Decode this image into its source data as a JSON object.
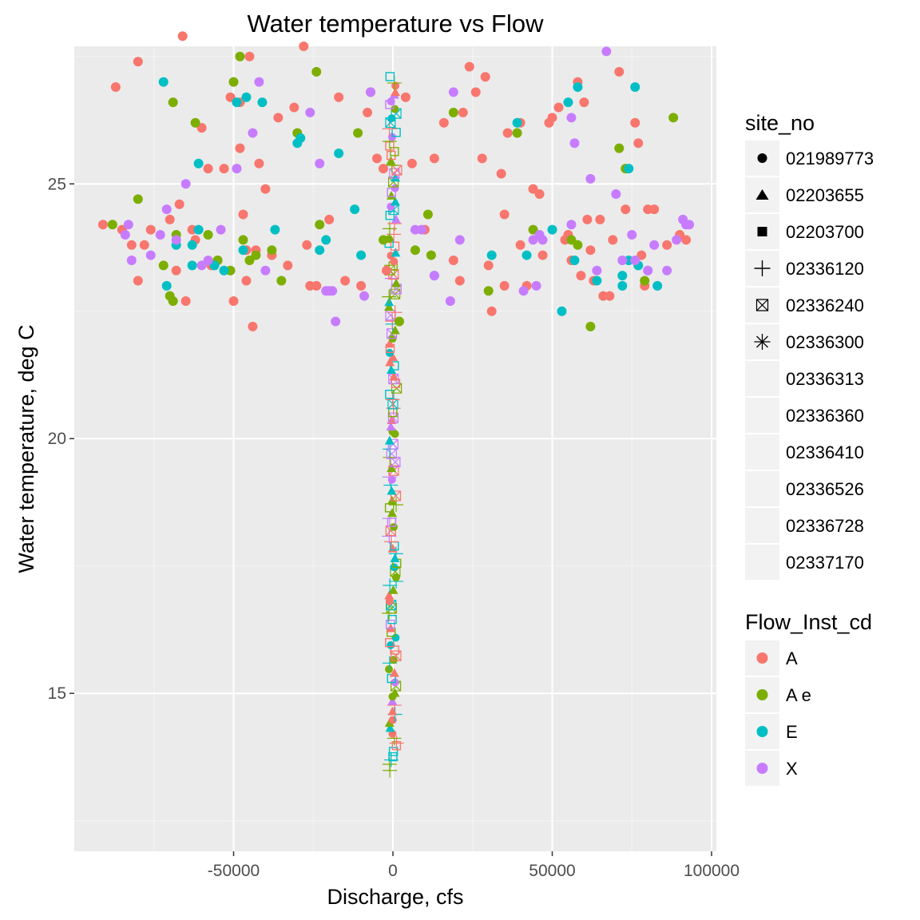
{
  "chart_data": {
    "type": "scatter",
    "title": "Water temperature vs Flow",
    "xlabel": "Discharge, cfs",
    "ylabel": "Water temperature, deg C",
    "xlim": [
      -100000,
      101500
    ],
    "ylim": [
      11.9,
      27.7
    ],
    "x_ticks": [
      -50000,
      0,
      50000,
      100000
    ],
    "x_tick_labels": [
      "-50000",
      "0",
      "50000",
      "100000"
    ],
    "y_ticks": [
      15,
      20,
      25
    ],
    "y_tick_labels": [
      "15",
      "20",
      "25"
    ],
    "grid": true,
    "legends": [
      {
        "title": "site_no",
        "placement": "right",
        "entries": [
          {
            "label": "021989773",
            "shape": "circle"
          },
          {
            "label": "02203655",
            "shape": "triangle"
          },
          {
            "label": "02203700",
            "shape": "square"
          },
          {
            "label": "02336120",
            "shape": "plus"
          },
          {
            "label": "02336240",
            "shape": "boxed-x"
          },
          {
            "label": "02336300",
            "shape": "asterisk"
          },
          {
            "label": "02336313",
            "shape": "none"
          },
          {
            "label": "02336360",
            "shape": "none"
          },
          {
            "label": "02336410",
            "shape": "none"
          },
          {
            "label": "02336526",
            "shape": "none"
          },
          {
            "label": "02336728",
            "shape": "none"
          },
          {
            "label": "02337170",
            "shape": "none"
          }
        ]
      },
      {
        "title": "Flow_Inst_cd",
        "placement": "right",
        "entries": [
          {
            "label": "A",
            "color": "#F8766D"
          },
          {
            "label": "A e",
            "color": "#7CAE00"
          },
          {
            "label": "E",
            "color": "#00BFC4"
          },
          {
            "label": "X",
            "color": "#C77CFF"
          }
        ]
      }
    ],
    "series": [
      {
        "name": "A",
        "color": "#F8766D",
        "points": [
          [
            -91000,
            24.2
          ],
          [
            -87000,
            26.9
          ],
          [
            -80000,
            27.4
          ],
          [
            -82000,
            23.8
          ],
          [
            -80000,
            23.1
          ],
          [
            -78000,
            23.8
          ],
          [
            -76000,
            24.1
          ],
          [
            -66000,
            27.9
          ],
          [
            -63000,
            24.1
          ],
          [
            -60000,
            26.1
          ],
          [
            -58000,
            25.3
          ],
          [
            -55000,
            23.5
          ],
          [
            -53000,
            25.3
          ],
          [
            -51000,
            26.7
          ],
          [
            -48000,
            26.6
          ],
          [
            -45000,
            27.5
          ],
          [
            -48000,
            25.7
          ],
          [
            -47000,
            24.4
          ],
          [
            -46000,
            23.7
          ],
          [
            -44000,
            22.2
          ],
          [
            -42000,
            25.4
          ],
          [
            -40000,
            24.9
          ],
          [
            -36000,
            26.3
          ],
          [
            -31000,
            26.5
          ],
          [
            -28000,
            27.7
          ],
          [
            -27000,
            23.8
          ],
          [
            -26000,
            23.0
          ],
          [
            -20000,
            24.3
          ],
          [
            -17000,
            26.7
          ],
          [
            -15000,
            23.1
          ],
          [
            -8000,
            26.4
          ],
          [
            -5000,
            25.5
          ],
          [
            -3000,
            25.3
          ],
          [
            -2000,
            23.3
          ],
          [
            4000,
            26.7
          ],
          [
            6000,
            25.4
          ],
          [
            10000,
            24.1
          ],
          [
            13000,
            25.5
          ],
          [
            19000,
            23.5
          ],
          [
            21000,
            23.1
          ],
          [
            22000,
            26.4
          ],
          [
            24000,
            27.3
          ],
          [
            26000,
            26.8
          ],
          [
            29000,
            27.1
          ],
          [
            28000,
            25.5
          ],
          [
            30000,
            23.4
          ],
          [
            31000,
            22.5
          ],
          [
            34000,
            25.2
          ],
          [
            35000,
            24.4
          ],
          [
            35000,
            23.0
          ],
          [
            36000,
            26.0
          ],
          [
            40000,
            26.2
          ],
          [
            42000,
            23.0
          ],
          [
            44000,
            24.9
          ],
          [
            46000,
            24.8
          ],
          [
            47000,
            23.6
          ],
          [
            49000,
            26.2
          ],
          [
            50000,
            26.3
          ],
          [
            52000,
            26.5
          ],
          [
            54000,
            23.9
          ],
          [
            56000,
            23.5
          ],
          [
            58000,
            27.0
          ],
          [
            59000,
            23.2
          ],
          [
            60000,
            26.6
          ],
          [
            61000,
            24.3
          ],
          [
            62000,
            23.7
          ],
          [
            63000,
            23.1
          ],
          [
            65000,
            24.3
          ],
          [
            66000,
            22.8
          ],
          [
            69000,
            23.9
          ],
          [
            71000,
            27.2
          ],
          [
            73000,
            24.5
          ],
          [
            76000,
            26.2
          ],
          [
            77000,
            25.8
          ],
          [
            78000,
            23.6
          ],
          [
            79000,
            23.0
          ],
          [
            80000,
            24.5
          ],
          [
            82000,
            24.5
          ],
          [
            86000,
            23.8
          ],
          [
            90000,
            24.0
          ],
          [
            92000,
            23.9
          ],
          [
            -70000,
            24.3
          ],
          [
            -68000,
            23.3
          ],
          [
            -67000,
            24.6
          ],
          [
            -65000,
            22.7
          ],
          [
            -62000,
            23.9
          ],
          [
            -57000,
            23.4
          ],
          [
            -50000,
            22.7
          ],
          [
            -46000,
            23.1
          ],
          [
            -43000,
            23.7
          ],
          [
            -38000,
            23.6
          ],
          [
            -24000,
            23.0
          ],
          [
            -10000,
            23.0
          ],
          [
            16000,
            26.2
          ],
          [
            40000,
            23.8
          ],
          [
            55000,
            24.0
          ],
          [
            68000,
            22.8
          ],
          [
            -85000,
            24.1
          ],
          [
            -33000,
            23.4
          ]
        ]
      },
      {
        "name": "A e",
        "color": "#7CAE00",
        "points": [
          [
            -80000,
            24.7
          ],
          [
            -72000,
            23.4
          ],
          [
            -70000,
            22.8
          ],
          [
            -69000,
            22.7
          ],
          [
            -68000,
            24.0
          ],
          [
            -69000,
            26.6
          ],
          [
            -62000,
            26.2
          ],
          [
            -58000,
            24.0
          ],
          [
            -55000,
            23.5
          ],
          [
            -50000,
            27.0
          ],
          [
            -48000,
            27.5
          ],
          [
            -47000,
            23.9
          ],
          [
            -43000,
            23.6
          ],
          [
            -38000,
            23.7
          ],
          [
            -35000,
            23.1
          ],
          [
            -30000,
            26.0
          ],
          [
            -24000,
            27.2
          ],
          [
            -23000,
            24.2
          ],
          [
            -11000,
            26.0
          ],
          [
            -7000,
            26.8
          ],
          [
            -3000,
            23.9
          ],
          [
            2000,
            22.3
          ],
          [
            7000,
            23.7
          ],
          [
            11000,
            24.4
          ],
          [
            12000,
            23.6
          ],
          [
            19000,
            26.4
          ],
          [
            30000,
            22.9
          ],
          [
            39000,
            26.0
          ],
          [
            44000,
            24.1
          ],
          [
            58000,
            23.8
          ],
          [
            62000,
            22.2
          ],
          [
            71000,
            25.7
          ],
          [
            73000,
            25.3
          ],
          [
            79000,
            23.1
          ],
          [
            88000,
            26.3
          ],
          [
            -88000,
            24.2
          ],
          [
            -45000,
            23.5
          ],
          [
            -51000,
            23.3
          ],
          [
            56000,
            23.9
          ]
        ]
      },
      {
        "name": "E",
        "color": "#00BFC4",
        "points": [
          [
            -72000,
            27.0
          ],
          [
            -71000,
            23.0
          ],
          [
            -68000,
            23.8
          ],
          [
            -63000,
            23.4
          ],
          [
            -63000,
            23.8
          ],
          [
            -61000,
            24.1
          ],
          [
            -61000,
            25.4
          ],
          [
            -56000,
            23.4
          ],
          [
            -53000,
            23.3
          ],
          [
            -49000,
            26.6
          ],
          [
            -46000,
            26.7
          ],
          [
            -47000,
            23.7
          ],
          [
            -41000,
            26.6
          ],
          [
            -37000,
            24.1
          ],
          [
            -30000,
            25.8
          ],
          [
            -29000,
            25.9
          ],
          [
            -23000,
            23.7
          ],
          [
            -21000,
            23.9
          ],
          [
            -17000,
            25.6
          ],
          [
            -12000,
            24.5
          ],
          [
            -10000,
            23.6
          ],
          [
            13000,
            23.2
          ],
          [
            31000,
            23.6
          ],
          [
            39000,
            26.2
          ],
          [
            42000,
            23.6
          ],
          [
            53000,
            22.5
          ],
          [
            55000,
            26.6
          ],
          [
            57000,
            23.5
          ],
          [
            58000,
            26.9
          ],
          [
            64000,
            23.1
          ],
          [
            72000,
            23.0
          ],
          [
            74000,
            25.3
          ],
          [
            74000,
            23.5
          ],
          [
            76000,
            26.9
          ],
          [
            77000,
            23.4
          ],
          [
            83000,
            23.0
          ],
          [
            50000,
            24.1
          ],
          [
            72000,
            23.2
          ]
        ]
      },
      {
        "name": "X",
        "color": "#C77CFF",
        "points": [
          [
            -84000,
            24.0
          ],
          [
            -83000,
            24.2
          ],
          [
            -82000,
            23.5
          ],
          [
            -76000,
            23.6
          ],
          [
            -73000,
            24.0
          ],
          [
            -71000,
            24.5
          ],
          [
            -68000,
            23.9
          ],
          [
            -65000,
            25.0
          ],
          [
            -60000,
            23.4
          ],
          [
            -58000,
            23.5
          ],
          [
            -54000,
            24.1
          ],
          [
            -49000,
            25.3
          ],
          [
            -44000,
            26.0
          ],
          [
            -42000,
            27.0
          ],
          [
            -40000,
            23.3
          ],
          [
            -26000,
            26.4
          ],
          [
            -23000,
            25.4
          ],
          [
            -21000,
            22.9
          ],
          [
            -20000,
            22.9
          ],
          [
            -19000,
            22.9
          ],
          [
            -18000,
            22.3
          ],
          [
            -9000,
            22.8
          ],
          [
            -7000,
            26.8
          ],
          [
            7000,
            24.1
          ],
          [
            9000,
            24.1
          ],
          [
            13000,
            23.2
          ],
          [
            18000,
            22.7
          ],
          [
            19000,
            26.8
          ],
          [
            21000,
            23.9
          ],
          [
            41000,
            22.9
          ],
          [
            44000,
            23.9
          ],
          [
            45000,
            23.0
          ],
          [
            46000,
            24.0
          ],
          [
            56000,
            26.3
          ],
          [
            57000,
            25.8
          ],
          [
            56000,
            24.2
          ],
          [
            62000,
            25.1
          ],
          [
            64000,
            23.3
          ],
          [
            67000,
            27.6
          ],
          [
            70000,
            24.8
          ],
          [
            72000,
            23.5
          ],
          [
            75000,
            24.0
          ],
          [
            76000,
            23.5
          ],
          [
            80000,
            23.3
          ],
          [
            82000,
            23.8
          ],
          [
            86000,
            23.3
          ],
          [
            89000,
            23.9
          ],
          [
            91000,
            24.3
          ],
          [
            92000,
            24.2
          ],
          [
            93000,
            24.2
          ],
          [
            80000,
            23.3
          ],
          [
            47000,
            23.9
          ]
        ]
      }
    ],
    "vertical_band": {
      "description_series_x": 0,
      "y_range": [
        13.5,
        27.1
      ],
      "colors": [
        "#F8766D",
        "#7CAE00",
        "#00BFC4",
        "#C77CFF"
      ],
      "shapes": [
        "square",
        "triangle",
        "plus",
        "boxed-x",
        "circle"
      ]
    }
  }
}
